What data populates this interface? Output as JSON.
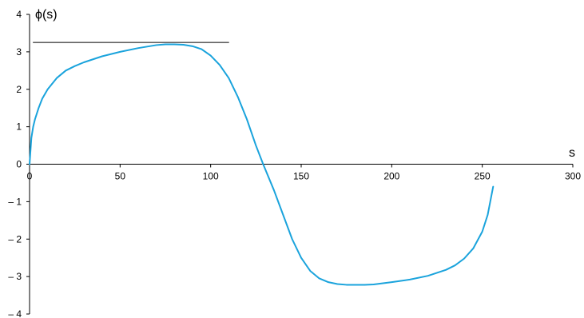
{
  "chart_data": {
    "type": "line",
    "title": "",
    "xlabel": "s",
    "ylabel": "ϕ(s)",
    "xlim": [
      0,
      300
    ],
    "ylim": [
      -4,
      4
    ],
    "x_ticks": [
      {
        "value": 0,
        "label": "0"
      },
      {
        "value": 50,
        "label": "50"
      },
      {
        "value": 100,
        "label": "100"
      },
      {
        "value": 150,
        "label": "150"
      },
      {
        "value": 200,
        "label": "200"
      },
      {
        "value": 250,
        "label": "250"
      },
      {
        "value": 300,
        "label": "300"
      }
    ],
    "y_ticks": [
      {
        "value": 4,
        "label": "4"
      },
      {
        "value": 3,
        "label": "3"
      },
      {
        "value": 2,
        "label": "2"
      },
      {
        "value": 1,
        "label": "1"
      },
      {
        "value": 0,
        "label": "0"
      },
      {
        "value": -1,
        "label": "– 1"
      },
      {
        "value": -2,
        "label": "– 2"
      },
      {
        "value": -3,
        "label": "– 3"
      },
      {
        "value": -4,
        "label": "– 4"
      }
    ],
    "grid": false,
    "legend": "none",
    "series": [
      {
        "color": "#1aa3dc",
        "x": [
          0,
          0.5,
          1,
          2,
          3,
          5,
          7,
          10,
          15,
          20,
          25,
          30,
          40,
          50,
          60,
          70,
          75,
          80,
          85,
          90,
          95,
          100,
          105,
          110,
          115,
          120,
          125,
          129,
          135,
          140,
          145,
          150,
          155,
          160,
          165,
          170,
          175,
          180,
          185,
          190,
          200,
          210,
          220,
          230,
          235,
          240,
          245,
          250,
          253,
          256
        ],
        "y": [
          0,
          0.35,
          0.7,
          1.0,
          1.2,
          1.5,
          1.75,
          2.0,
          2.3,
          2.5,
          2.62,
          2.72,
          2.88,
          3.0,
          3.1,
          3.18,
          3.2,
          3.2,
          3.19,
          3.15,
          3.07,
          2.9,
          2.65,
          2.3,
          1.8,
          1.2,
          0.5,
          0.0,
          -0.7,
          -1.35,
          -2.0,
          -2.5,
          -2.85,
          -3.05,
          -3.15,
          -3.2,
          -3.22,
          -3.22,
          -3.22,
          -3.21,
          -3.15,
          -3.08,
          -2.98,
          -2.82,
          -2.7,
          -2.52,
          -2.25,
          -1.8,
          -1.35,
          -0.6
        ]
      },
      {
        "color": "#000000",
        "x": [
          2,
          110
        ],
        "y": [
          3.25,
          3.25
        ]
      }
    ]
  }
}
